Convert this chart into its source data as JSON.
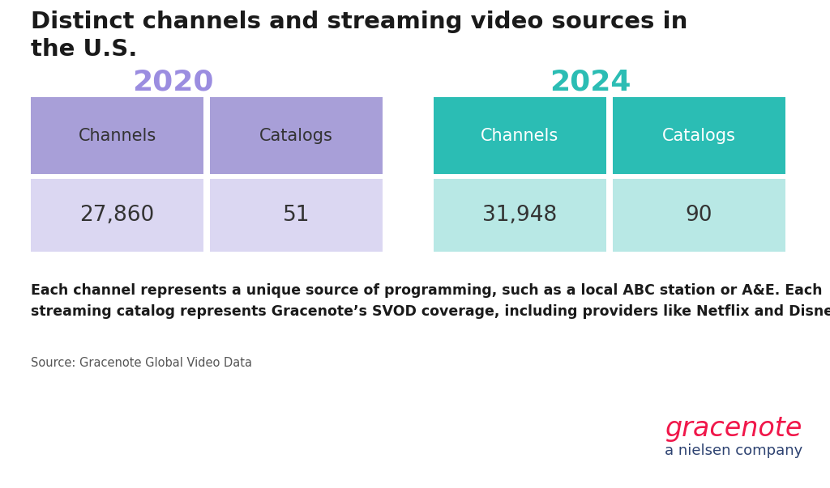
{
  "title_line1": "Distinct channels and streaming video sources in",
  "title_line2": "the U.S.",
  "title_fontsize": 21,
  "title_fontweight": "bold",
  "background_color": "#ffffff",
  "year_2020": "2020",
  "year_2024": "2024",
  "year_color_2020": "#9b8de0",
  "year_color_2024": "#2bbdb4",
  "year_fontsize": 26,
  "header_labels_2020": [
    "Channels",
    "Catalogs"
  ],
  "header_labels_2024": [
    "Channels",
    "Catalogs"
  ],
  "values_2020": [
    "27,860",
    "51"
  ],
  "values_2024": [
    "31,948",
    "90"
  ],
  "header_bg_2020": "#a89fd8",
  "value_bg_2020": "#dbd7f2",
  "header_bg_2024": "#2bbdb4",
  "value_bg_2024": "#b8e8e5",
  "header_text_color_2020": "#333333",
  "header_text_color_2024": "#ffffff",
  "value_text_color": "#333333",
  "footnote_text": "Each channel represents a unique source of programming, such as a local ABC station or A&E. Each\nstreaming catalog represents Gracenote’s SVOD coverage, including providers like Netflix and Disney+.",
  "source_text": "Source: Gracenote Global Video Data",
  "gracenote_text": "gracenote",
  "gracenote_color": "#f0174a",
  "nielsen_text": "a nielsen company",
  "nielsen_color": "#2d4271",
  "header_fontsize": 15,
  "value_fontsize": 19,
  "footnote_fontsize": 12.5,
  "source_fontsize": 10.5,
  "gracenote_fontsize": 24,
  "nielsen_fontsize": 13
}
